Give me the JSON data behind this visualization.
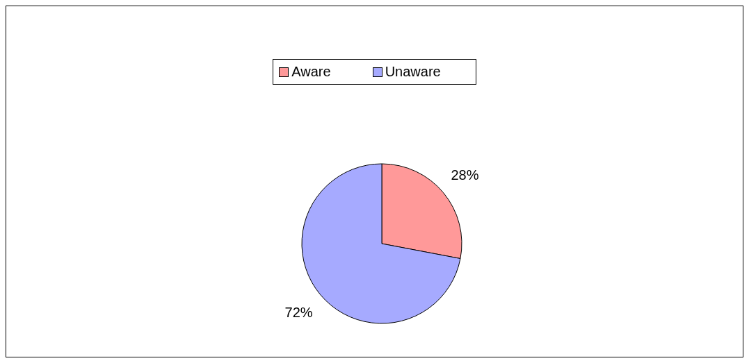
{
  "chart_data": {
    "type": "pie",
    "categories": [
      "Aware",
      "Unaware"
    ],
    "values": [
      28,
      72
    ],
    "colors": [
      "#ff9999",
      "#a6aaff"
    ],
    "value_labels": [
      "28%",
      "72%"
    ],
    "legend": "top"
  }
}
